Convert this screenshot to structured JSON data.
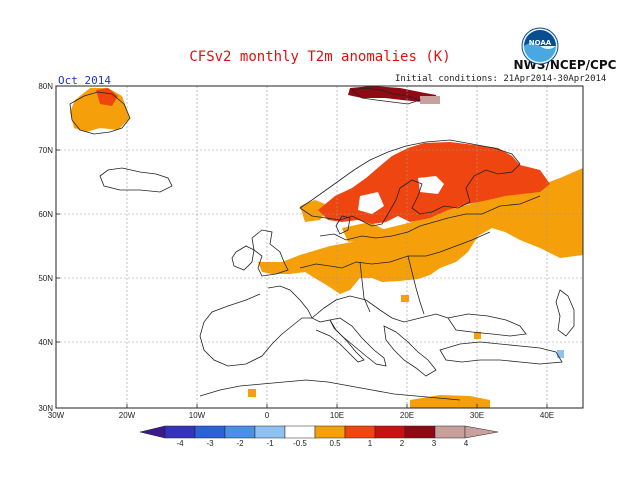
{
  "title": "CFSv2 monthly T2m anomalies (K)",
  "forecast_month": "Oct 2014",
  "initial_conditions": "Initial conditions: 21Apr2014-30Apr2014",
  "agency": "NWS/NCEP/CPC",
  "logo_text": "NOAA",
  "lat_labels": [
    "80N",
    "70N",
    "60N",
    "50N",
    "40N",
    "30N"
  ],
  "lon_labels": [
    "30W",
    "20W",
    "10W",
    "0",
    "10E",
    "20E",
    "30E",
    "40E"
  ],
  "colorbar": {
    "labels": [
      "-4",
      "-3",
      "-2",
      "-1",
      "-0.5",
      "0.5",
      "1",
      "2",
      "3",
      "4"
    ],
    "colors": [
      "#3a1a8c",
      "#3333bb",
      "#2a63d6",
      "#4a8fe8",
      "#8fc1f2",
      "#ffffff",
      "#f5a00a",
      "#ef4510",
      "#c81212",
      "#8f0b14",
      "#c8a09c"
    ]
  },
  "colors": {
    "t_0_5_to_1": "#f5a00a",
    "t_1_to_2": "#ef4510",
    "t_2_to_3": "#c81212",
    "t_3_to_4": "#8f0b14",
    "t_above_4": "#c8a09c",
    "t_neg_0_5_to_neg_1": "#8fc1f2"
  }
}
